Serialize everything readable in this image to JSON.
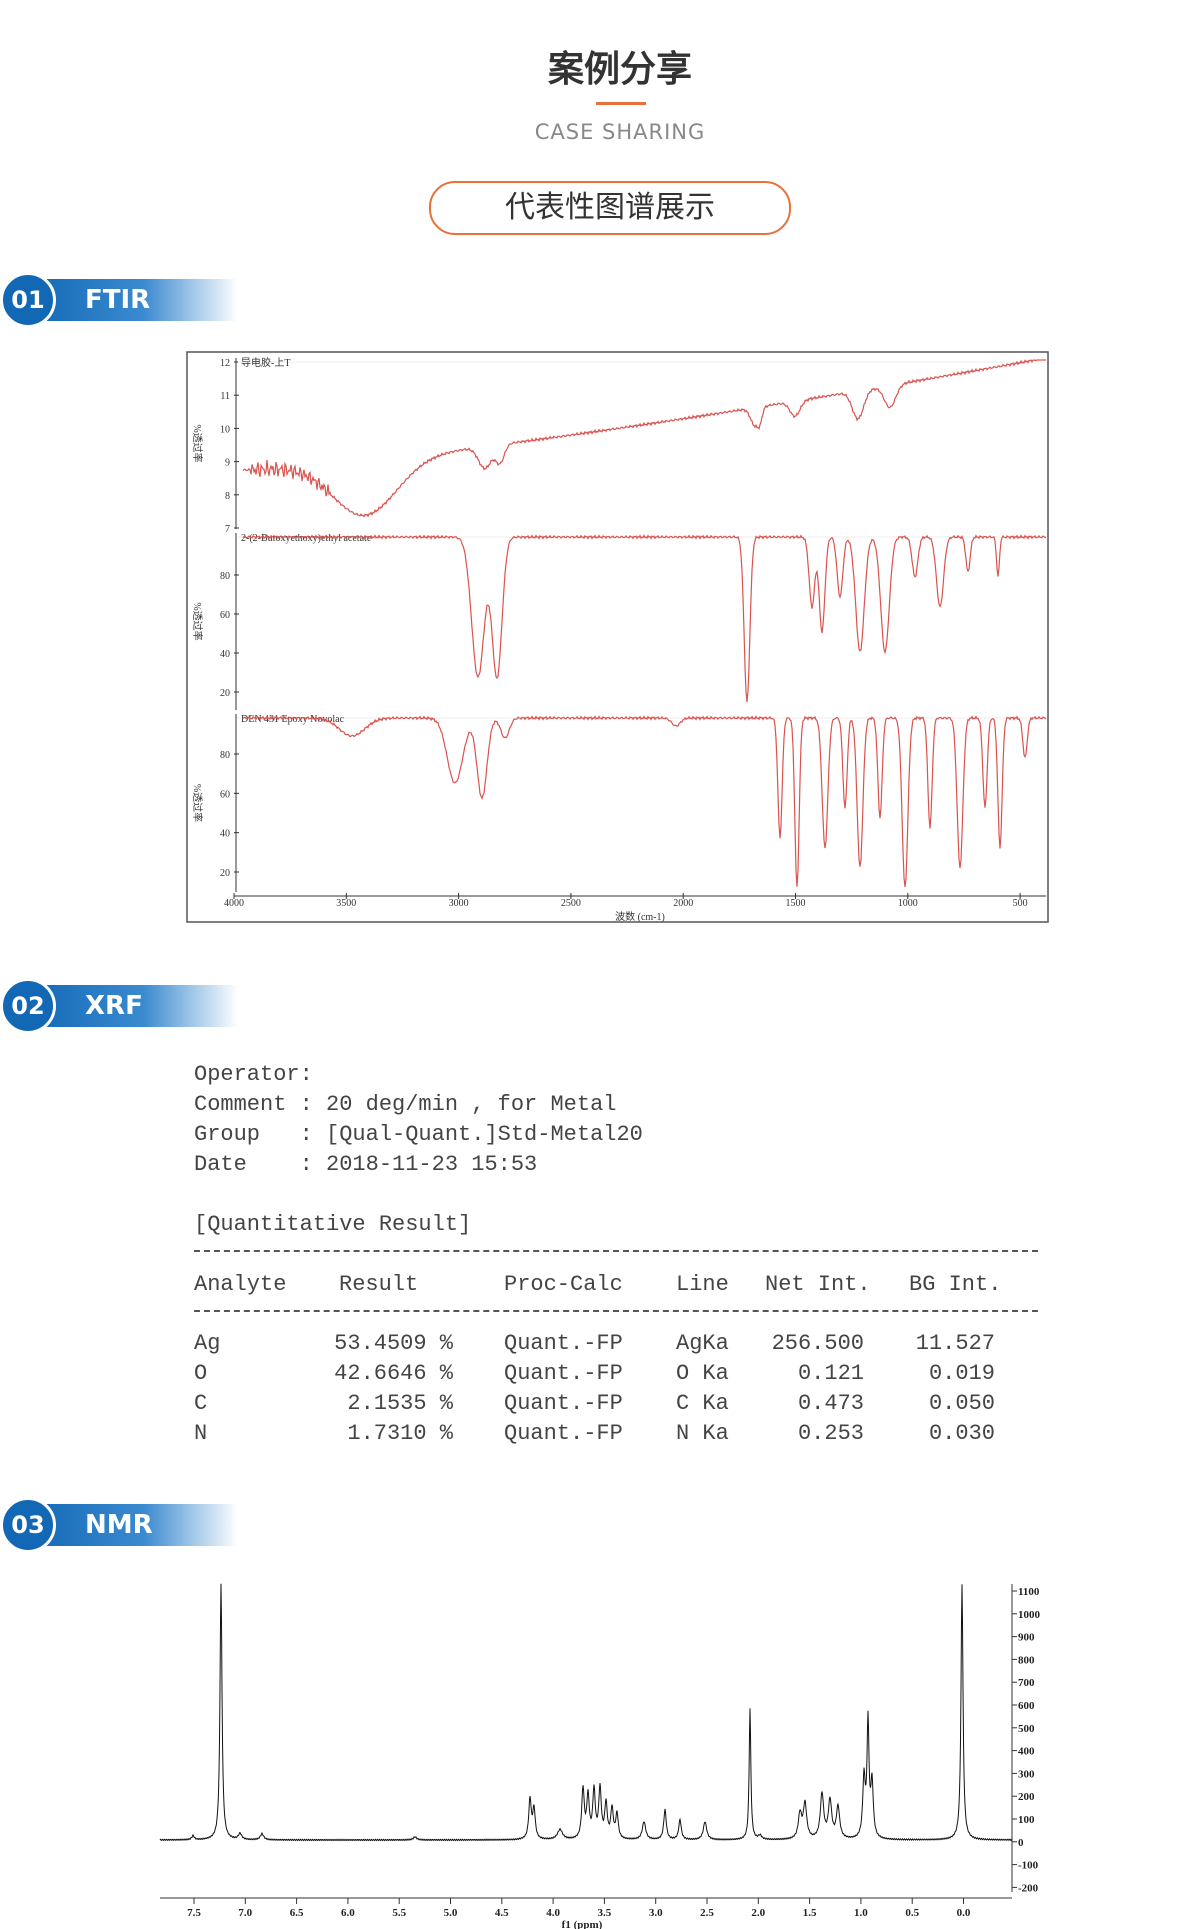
{
  "header": {
    "title": "案例分享",
    "subtitle": "CASE SHARING",
    "button": "代表性图谱展示"
  },
  "sections": [
    {
      "number": "01",
      "label": "FTIR"
    },
    {
      "number": "02",
      "label": "XRF"
    },
    {
      "number": "03",
      "label": "NMR"
    }
  ],
  "ftir": {
    "panels": [
      {
        "label": "导电胶-上T",
        "y_axis": "%透过率",
        "yticks": [
          "12",
          "11",
          "10",
          "9",
          "8",
          "7"
        ]
      },
      {
        "label": "2-(2-Butoxyethoxy)ethyl acetate",
        "y_axis": "%透过率",
        "yticks": [
          "80",
          "60",
          "40",
          "20"
        ]
      },
      {
        "label": "DEN 431 Epoxy Novolac",
        "y_axis": "%透过率",
        "yticks": [
          "80",
          "60",
          "40",
          "20"
        ]
      }
    ],
    "xticks": [
      "4000",
      "3500",
      "3000",
      "2500",
      "2000",
      "1500",
      "1000",
      "500"
    ],
    "x_label": "波数 (cm-1)"
  },
  "xrf": {
    "lines": [
      "Operator:",
      "Comment : 20 deg/min , for Metal",
      "Group   : [Qual-Quant.]Std-Metal20",
      "Date    : 2018-11-23 15:53"
    ],
    "result_title": "[Quantitative Result]",
    "columns": [
      "Analyte",
      "Result",
      "Proc-Calc",
      "Line",
      "Net Int.",
      "BG Int."
    ],
    "rows": [
      [
        "Ag",
        "53.4509 %",
        "Quant.-FP",
        "AgKa",
        "256.500",
        "11.527"
      ],
      [
        "O",
        "42.6646 %",
        "Quant.-FP",
        "O Ka",
        "0.121",
        "0.019"
      ],
      [
        "C",
        "2.1535 %",
        "Quant.-FP",
        "C Ka",
        "0.473",
        "0.050"
      ],
      [
        "N",
        "1.7310 %",
        "Quant.-FP",
        "N Ka",
        "0.253",
        "0.030"
      ]
    ]
  },
  "nmr": {
    "xticks": [
      "7.5",
      "7.0",
      "6.5",
      "6.0",
      "5.5",
      "5.0",
      "4.5",
      "4.0",
      "3.5",
      "3.0",
      "2.5",
      "2.0",
      "1.5",
      "1.0",
      "0.5",
      "0.0"
    ],
    "yticks": [
      "1100",
      "1000",
      "900",
      "800",
      "700",
      "600",
      "500",
      "400",
      "300",
      "200",
      "100",
      "0",
      "-100",
      "-200"
    ],
    "x_label": "f1 (ppm)"
  }
}
